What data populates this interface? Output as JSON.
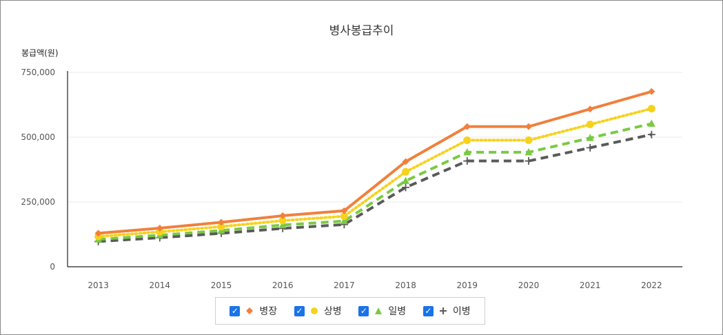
{
  "chart_data": {
    "type": "line",
    "title": "병사봉급추이",
    "ylabel": "봉급액(원)",
    "xlabel": "",
    "categories": [
      "2013",
      "2014",
      "2015",
      "2016",
      "2017",
      "2018",
      "2019",
      "2020",
      "2021",
      "2022"
    ],
    "ylim": [
      0,
      750000
    ],
    "yticks": [
      {
        "value": 0,
        "label": "0"
      },
      {
        "value": 250000,
        "label": "250,000"
      },
      {
        "value": 500000,
        "label": "500,000"
      },
      {
        "value": 750000,
        "label": "750,000"
      }
    ],
    "grid": true,
    "legend_position": "bottom",
    "series": [
      {
        "name": "병장",
        "color": "#f0803c",
        "marker": "diamond",
        "dash": "solid",
        "values": [
          129400,
          149000,
          171400,
          197000,
          216000,
          405700,
          540900,
          540900,
          608500,
          676100
        ]
      },
      {
        "name": "상병",
        "color": "#f6d21f",
        "marker": "circle",
        "dash": "dotted",
        "values": [
          117000,
          134600,
          154800,
          178000,
          195000,
          366200,
          488200,
          488200,
          549200,
          610200
        ]
      },
      {
        "name": "일병",
        "color": "#7ac943",
        "marker": "triangle",
        "dash": "dashed",
        "values": [
          105800,
          121800,
          140000,
          161000,
          176400,
          331300,
          441700,
          441700,
          496900,
          552100
        ]
      },
      {
        "name": "이병",
        "color": "#5a5a5a",
        "marker": "plus",
        "dash": "dashed",
        "values": [
          97500,
          112200,
          129000,
          148000,
          163000,
          306100,
          408100,
          408100,
          459100,
          510100
        ]
      }
    ]
  },
  "legend": {
    "items": [
      {
        "label": "병장",
        "checked": true
      },
      {
        "label": "상병",
        "checked": true
      },
      {
        "label": "일병",
        "checked": true
      },
      {
        "label": "이병",
        "checked": true
      }
    ]
  }
}
